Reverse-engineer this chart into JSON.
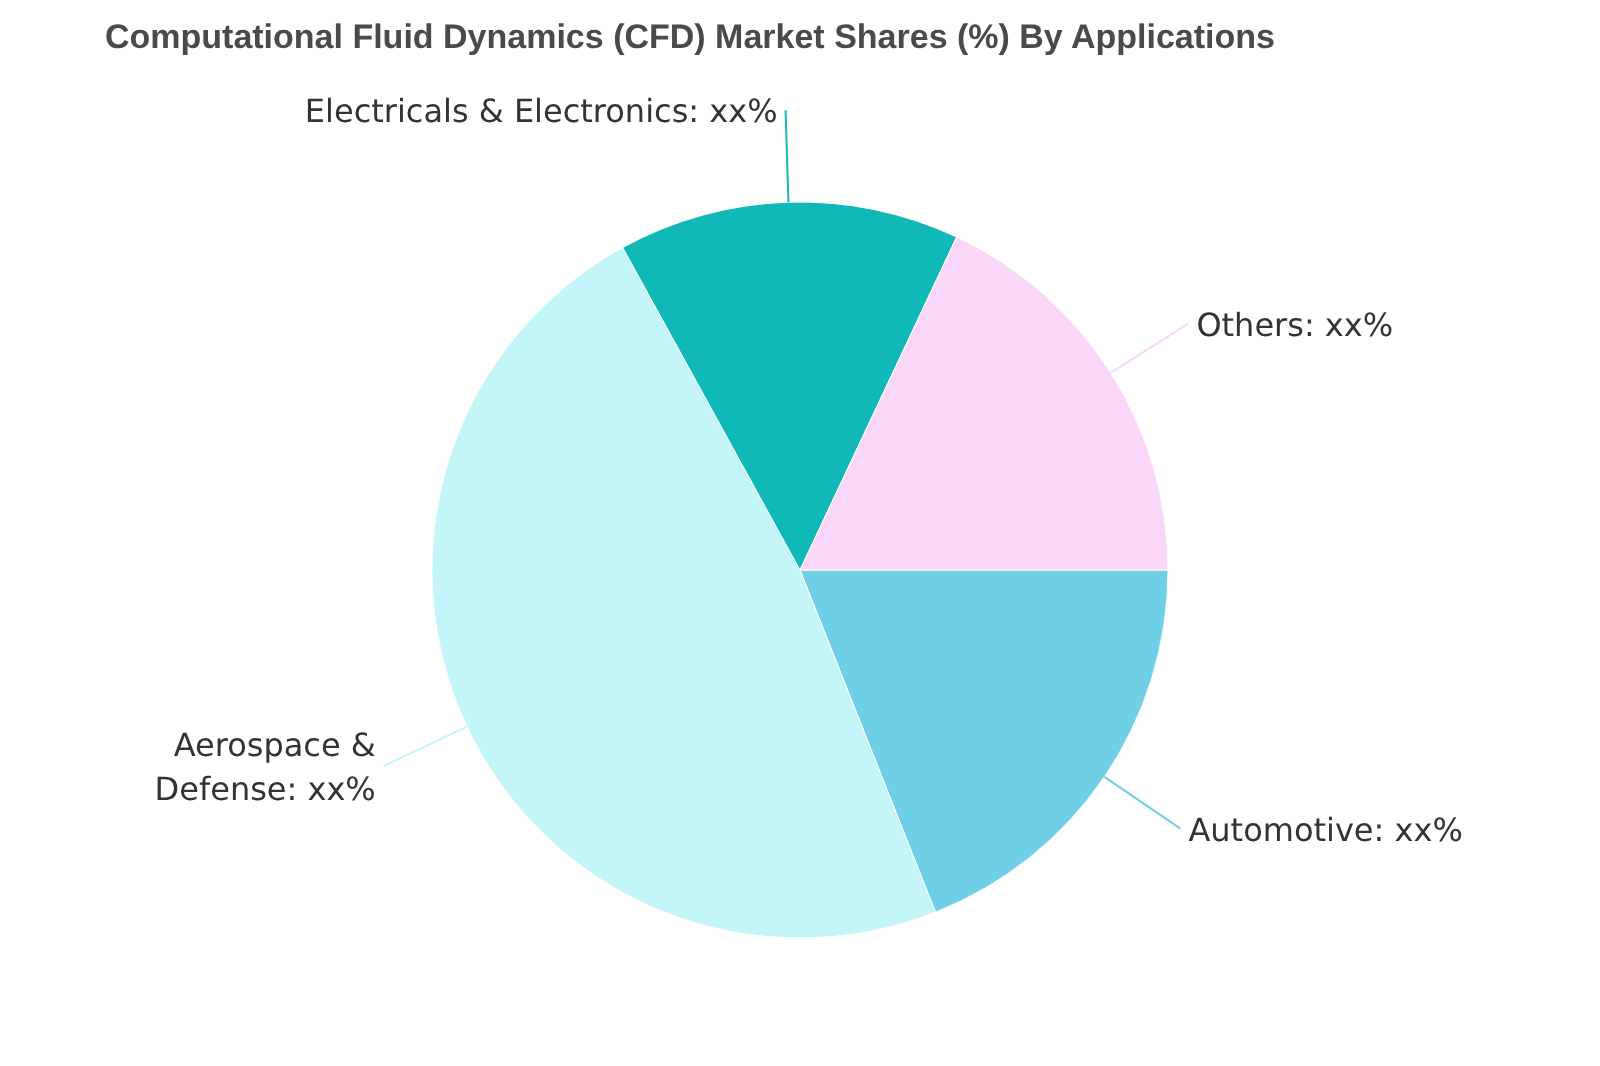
{
  "chart_data": {
    "type": "pie",
    "title": "Computational Fluid Dynamics (CFD) Market Shares (%) By Applications",
    "categories": [
      "Automotive",
      "Aerospace & Defense",
      "Electricals & Electronics",
      "Others"
    ],
    "values": [
      19,
      48,
      15,
      18
    ],
    "colors": [
      "#6ecfe6",
      "#c4f5f8",
      "#10b8b8",
      "#fad6f8"
    ],
    "value_labels": [
      "xx%",
      "xx%",
      "xx%",
      "xx%"
    ]
  }
}
